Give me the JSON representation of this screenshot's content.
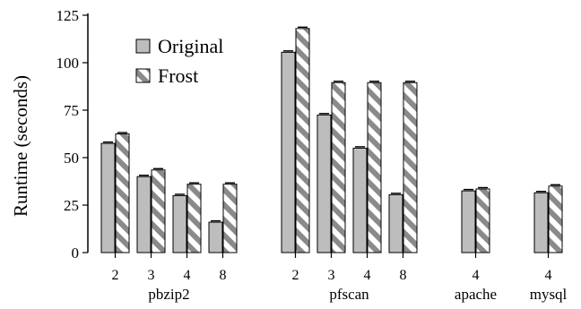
{
  "chart_data": {
    "type": "bar",
    "ylabel": "Runtime (seconds)",
    "ylim": [
      0,
      125
    ],
    "yticks": [
      0,
      25,
      50,
      75,
      100,
      125
    ],
    "legend": [
      "Original",
      "Frost"
    ],
    "legend_position": "top-left",
    "groups": [
      {
        "name": "pbzip2",
        "categories": [
          "2",
          "3",
          "4",
          "8"
        ],
        "original": [
          57.5,
          40,
          30,
          16
        ],
        "frost": [
          62.5,
          43.5,
          36,
          36
        ]
      },
      {
        "name": "pfscan",
        "categories": [
          "2",
          "3",
          "4",
          "8"
        ],
        "original": [
          105.5,
          72.5,
          55,
          30.5
        ],
        "frost": [
          118,
          89.5,
          89.5,
          89.5
        ]
      },
      {
        "name": "apache",
        "categories": [
          "4"
        ],
        "original": [
          32.5
        ],
        "frost": [
          33.5
        ]
      },
      {
        "name": "mysql",
        "categories": [
          "4"
        ],
        "original": [
          31.5
        ],
        "frost": [
          35
        ]
      }
    ],
    "colors": {
      "original": "#bdbdbd",
      "frost_stripe": "#8a8a8a",
      "frost_bg": "#ffffff"
    }
  }
}
